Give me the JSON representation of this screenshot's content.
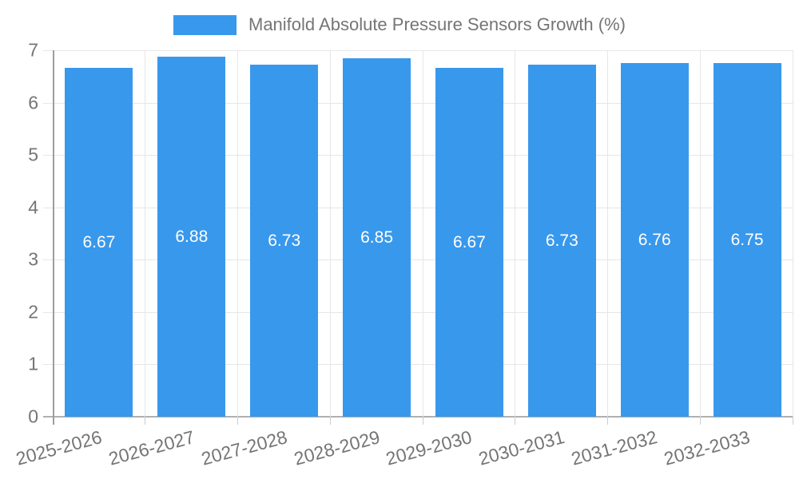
{
  "legend": {
    "label": "Manifold Absolute Pressure Sensors Growth (%)"
  },
  "colors": {
    "bar": "#3898ec",
    "legend_text": "#757575",
    "axis_text": "#757575",
    "grid_line": "#e6e6e6",
    "zero_line": "#b0b0b0",
    "y_axis_line": "#9e9e9e",
    "tick_line": "#cccccc",
    "value_label_text": "#ffffff",
    "background": "#ffffff"
  },
  "chart_data": {
    "type": "bar",
    "title": "Manifold Absolute Pressure Sensors Growth (%)",
    "categories": [
      "2025-2026",
      "2026-2027",
      "2027-2028",
      "2028-2029",
      "2029-2030",
      "2030-2031",
      "2031-2032",
      "2032-2033"
    ],
    "values": [
      6.67,
      6.88,
      6.73,
      6.85,
      6.67,
      6.73,
      6.76,
      6.75
    ],
    "value_labels": [
      "6.67",
      "6.88",
      "6.73",
      "6.85",
      "6.67",
      "6.73",
      "6.76",
      "6.75"
    ],
    "xlabel": "",
    "ylabel": "",
    "ylim": [
      0,
      7
    ],
    "yticks": [
      0,
      1,
      2,
      3,
      4,
      5,
      6,
      7
    ],
    "grid": true,
    "legend_position": "top-center",
    "value_label_position": "inside-center",
    "x_tick_rotation_deg": -15
  }
}
